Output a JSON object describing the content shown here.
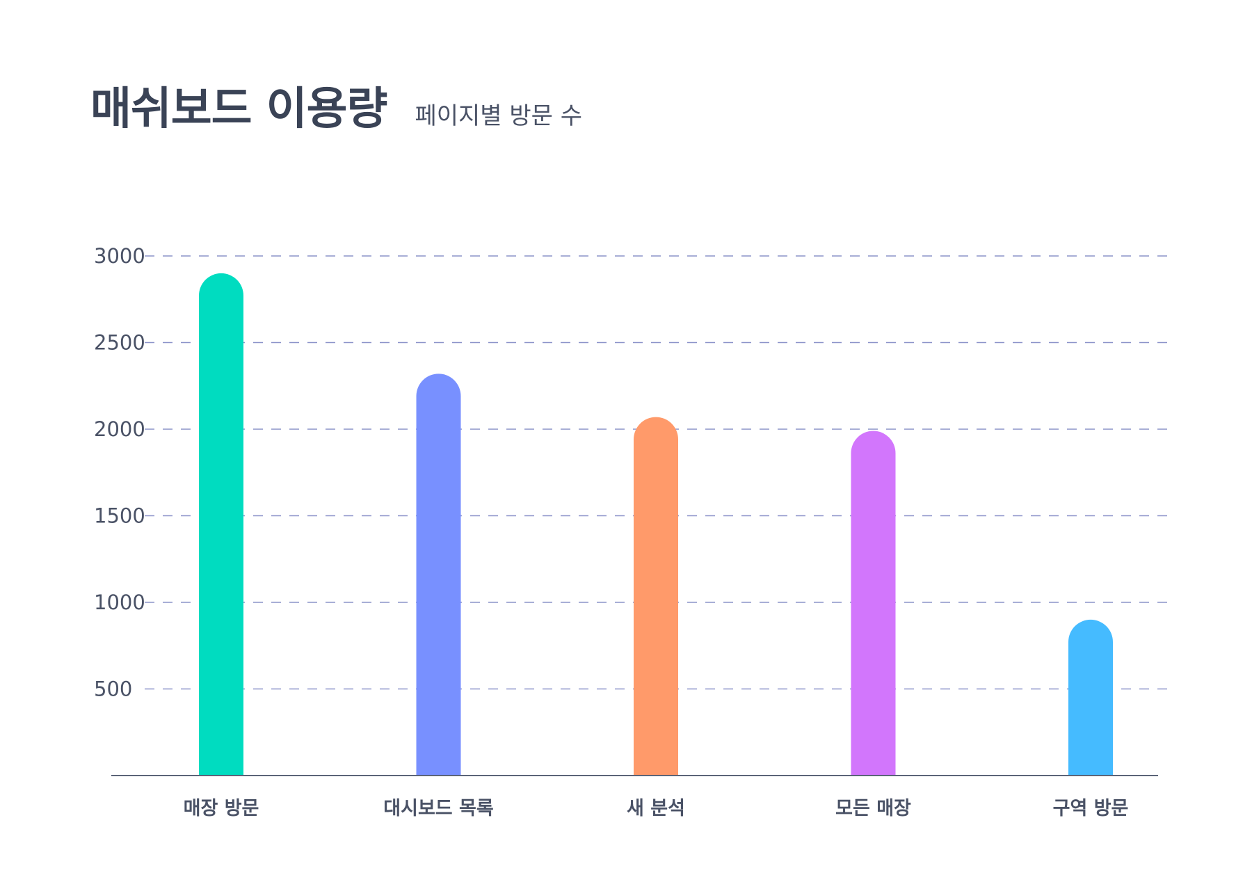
{
  "chart_data": {
    "type": "bar",
    "title": "매쉬보드 이용량",
    "subtitle": "페이지별 방문 수",
    "categories": [
      "매장 방문",
      "대시보드 목록",
      "새 분석",
      "모든 매장",
      "구역 방문"
    ],
    "values": [
      2900,
      2320,
      2070,
      1990,
      900
    ],
    "colors": [
      "#00dcc0",
      "#7890ff",
      "#ff9a6a",
      "#d276fc",
      "#45bbff"
    ],
    "yticks": [
      500,
      1000,
      1500,
      2000,
      2500,
      3000
    ],
    "ylim": [
      0,
      3000
    ],
    "grid": true,
    "legend": "none"
  }
}
